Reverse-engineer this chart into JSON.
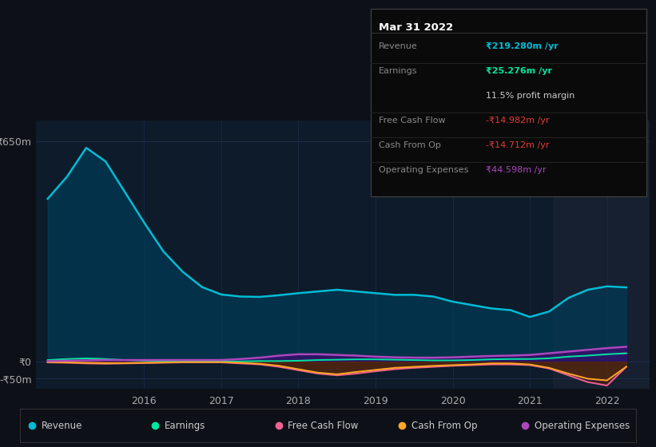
{
  "bg_color": "#0d1117",
  "plot_bg_color": "#0d1b2a",
  "grid_color": "#1e3050",
  "title": "Mar 31 2022",
  "ylabel_top": "₹650m",
  "ylabel_zero": "₹0",
  "ylabel_neg": "-₹50m",
  "ylim": [
    -80,
    710
  ],
  "yticks": [
    -50,
    0,
    650
  ],
  "xticks": [
    2016,
    2017,
    2018,
    2019,
    2020,
    2021,
    2022
  ],
  "xlim": [
    2014.6,
    2022.55
  ],
  "legend": [
    {
      "label": "Revenue",
      "color": "#00bcd4"
    },
    {
      "label": "Earnings",
      "color": "#00e5a0"
    },
    {
      "label": "Free Cash Flow",
      "color": "#f06292"
    },
    {
      "label": "Cash From Op",
      "color": "#ffa726"
    },
    {
      "label": "Operating Expenses",
      "color": "#ab47bc"
    }
  ],
  "shade_x_start": 2021.3,
  "shade_x_end": 2022.55,
  "series": {
    "x": [
      2014.75,
      2015.0,
      2015.25,
      2015.5,
      2015.75,
      2016.0,
      2016.25,
      2016.5,
      2016.75,
      2017.0,
      2017.25,
      2017.5,
      2017.75,
      2018.0,
      2018.25,
      2018.5,
      2018.75,
      2019.0,
      2019.25,
      2019.5,
      2019.75,
      2020.0,
      2020.25,
      2020.5,
      2020.75,
      2021.0,
      2021.25,
      2021.5,
      2021.75,
      2022.0,
      2022.25
    ],
    "revenue": [
      480,
      545,
      630,
      590,
      500,
      410,
      325,
      265,
      220,
      198,
      192,
      191,
      196,
      202,
      207,
      212,
      207,
      202,
      197,
      197,
      192,
      177,
      167,
      157,
      152,
      132,
      148,
      188,
      212,
      222,
      219
    ],
    "earnings": [
      5,
      8,
      10,
      8,
      5,
      3,
      2,
      1,
      1,
      1,
      1,
      2,
      2,
      3,
      5,
      6,
      7,
      7,
      6,
      5,
      4,
      4,
      5,
      7,
      8,
      8,
      10,
      15,
      18,
      22,
      25
    ],
    "fcf": [
      -2,
      -3,
      -5,
      -6,
      -5,
      -4,
      -3,
      -2,
      -2,
      -2,
      -5,
      -8,
      -15,
      -25,
      -35,
      -40,
      -35,
      -28,
      -22,
      -18,
      -15,
      -12,
      -10,
      -8,
      -8,
      -10,
      -20,
      -40,
      -60,
      -70,
      -15
    ],
    "cashop": [
      -1,
      -2,
      -3,
      -4,
      -4,
      -3,
      -2,
      -1,
      -1,
      -1,
      -3,
      -6,
      -12,
      -22,
      -32,
      -37,
      -30,
      -24,
      -18,
      -15,
      -12,
      -10,
      -8,
      -5,
      -5,
      -8,
      -18,
      -35,
      -50,
      -55,
      -14.7
    ],
    "opex": [
      2,
      3,
      4,
      5,
      5,
      5,
      5,
      5,
      5,
      5,
      8,
      12,
      18,
      22,
      22,
      20,
      18,
      15,
      13,
      12,
      12,
      13,
      15,
      17,
      18,
      20,
      25,
      30,
      35,
      40,
      44
    ]
  },
  "info_rows": [
    {
      "label": "Revenue",
      "value": "₹219.280m /yr",
      "value_color": "#00bcd4",
      "bold": true,
      "divider": true
    },
    {
      "label": "Earnings",
      "value": "₹25.276m /yr",
      "value_color": "#00e5a0",
      "bold": true,
      "divider": false
    },
    {
      "label": "",
      "value": "11.5% profit margin",
      "value_color": "#cccccc",
      "bold": false,
      "divider": true
    },
    {
      "label": "Free Cash Flow",
      "value": "-₹14.982m /yr",
      "value_color": "#e53935",
      "bold": false,
      "divider": true
    },
    {
      "label": "Cash From Op",
      "value": "-₹14.712m /yr",
      "value_color": "#e53935",
      "bold": false,
      "divider": true
    },
    {
      "label": "Operating Expenses",
      "value": "₹44.598m /yr",
      "value_color": "#ab47bc",
      "bold": false,
      "divider": false
    }
  ]
}
